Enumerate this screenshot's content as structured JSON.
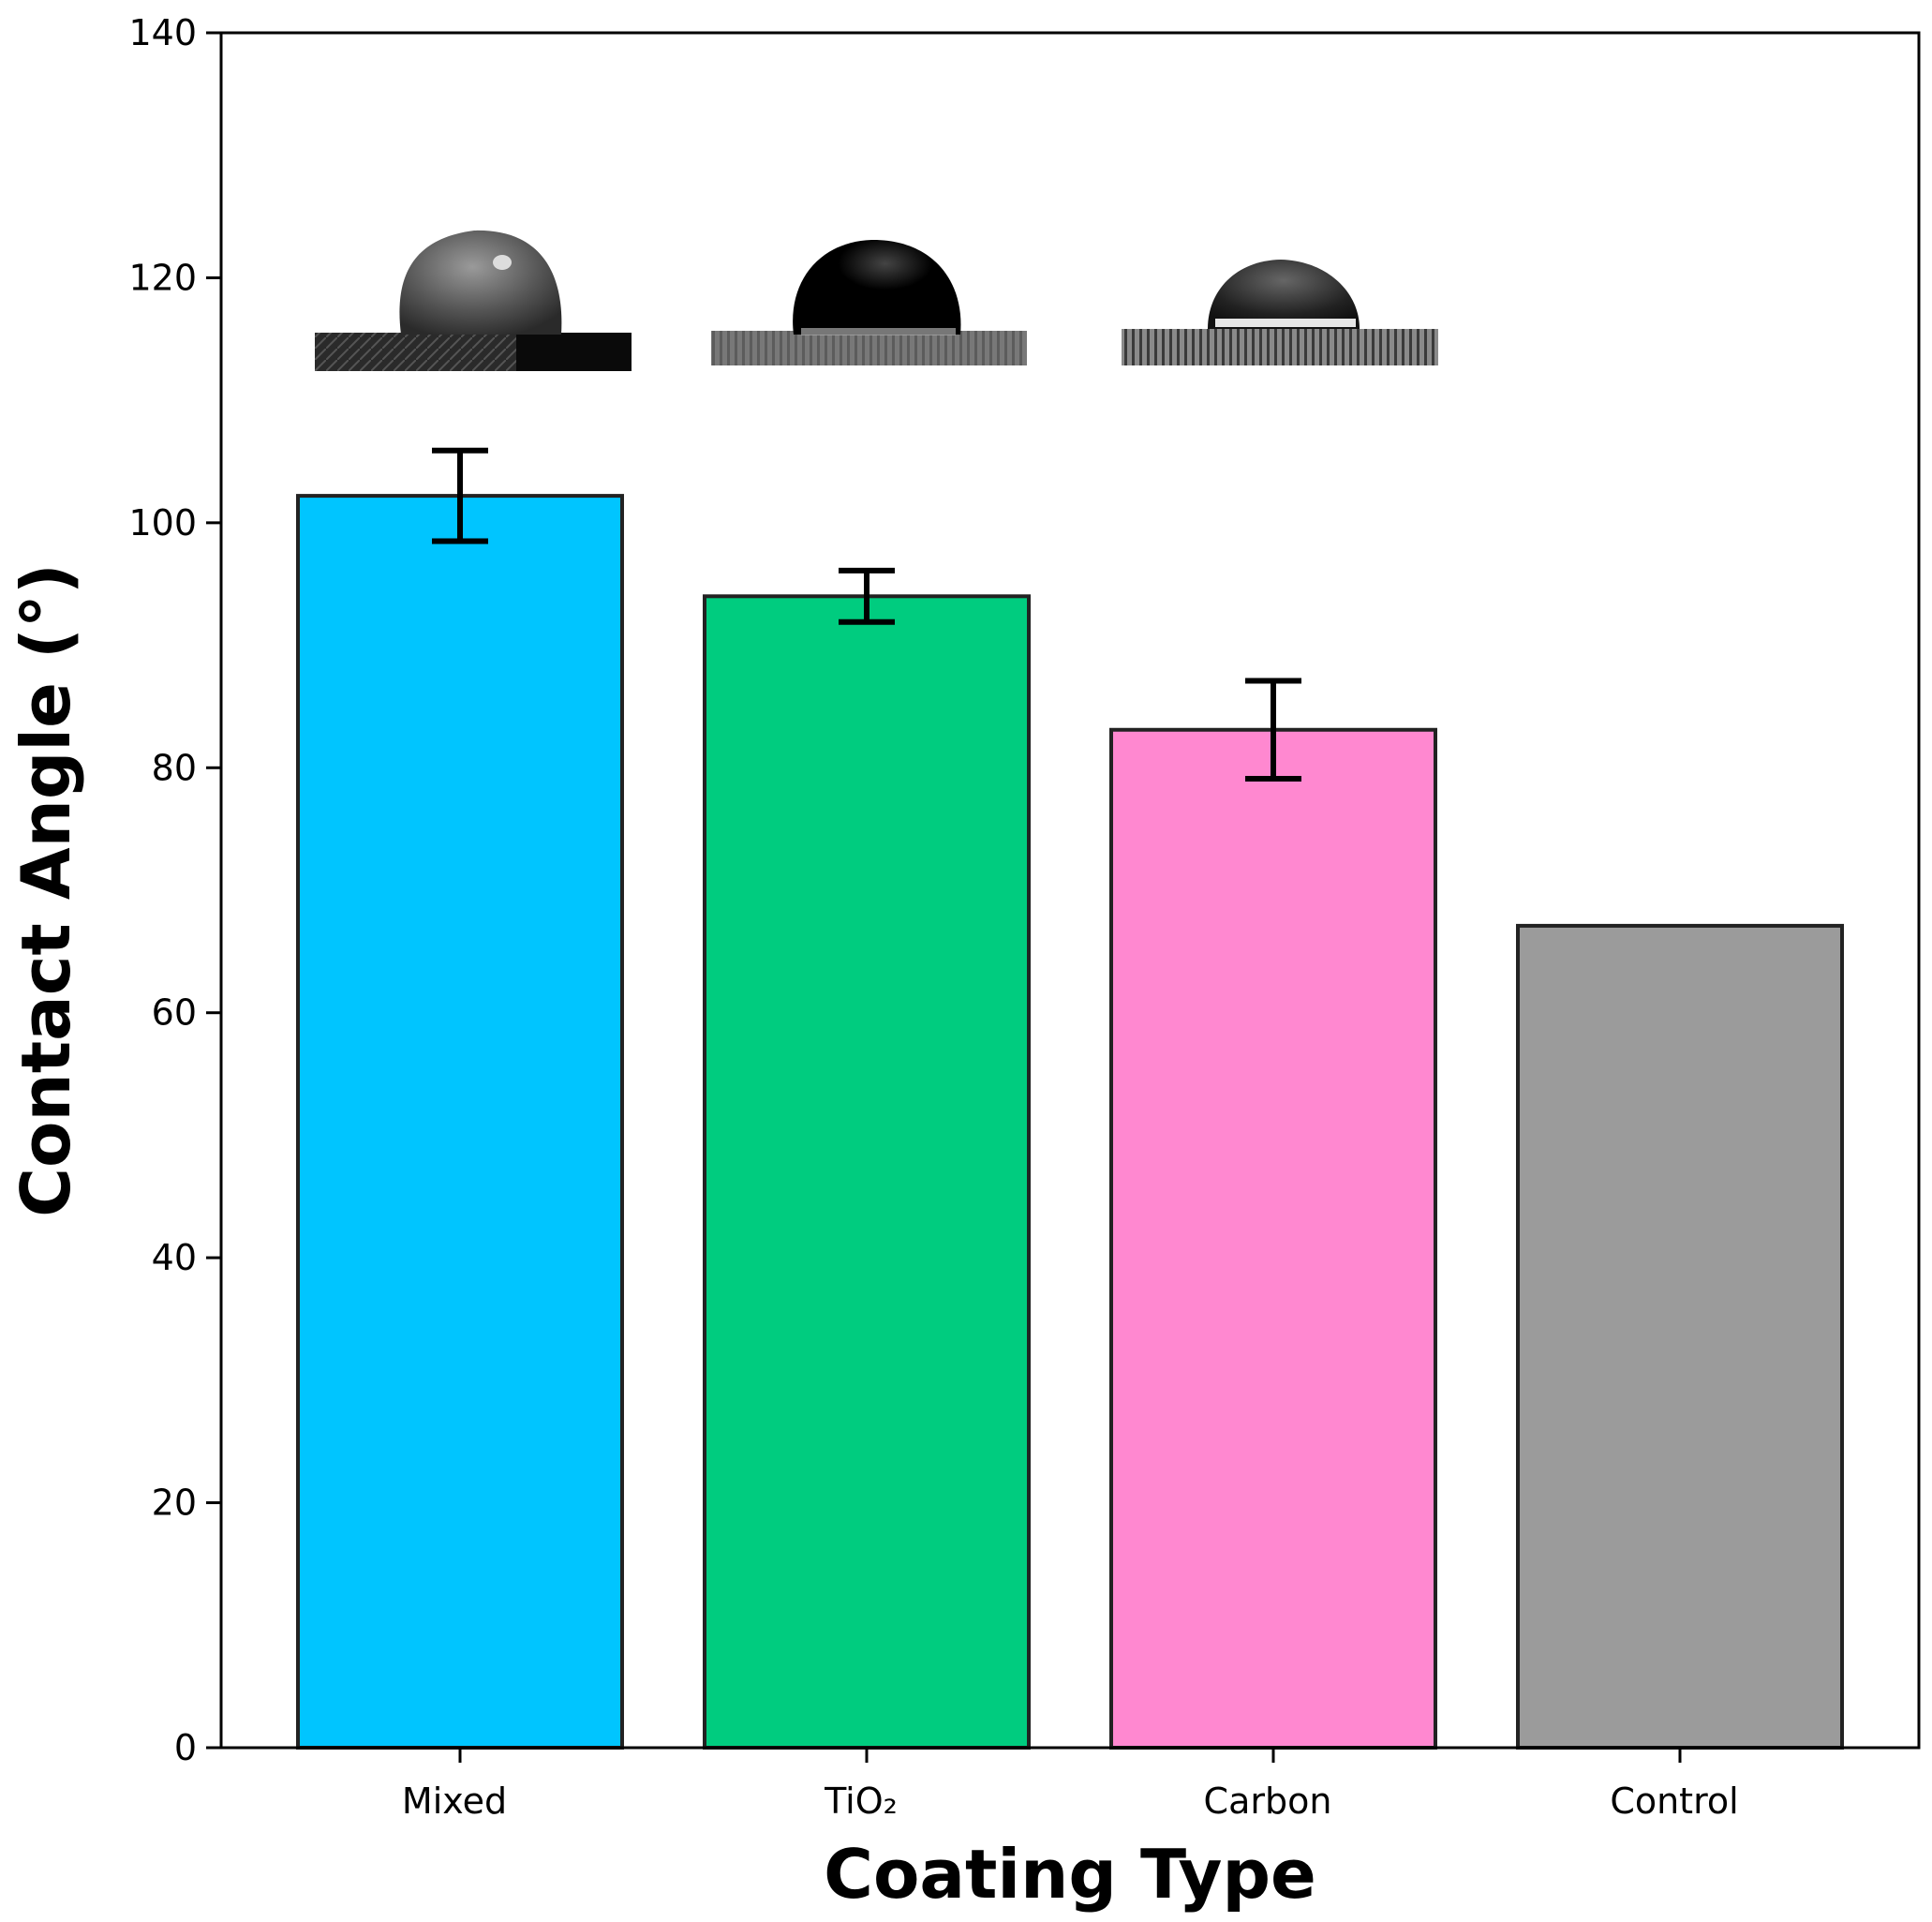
{
  "chart_data": {
    "type": "bar",
    "title": "",
    "xlabel": "Coating Type",
    "ylabel": "Contact Angle (°)",
    "ylim": [
      0,
      140
    ],
    "yticks": [
      0,
      20,
      40,
      60,
      80,
      100,
      120,
      140
    ],
    "categories": [
      "Mixed",
      "TiO₂",
      "Carbon",
      "Control"
    ],
    "values": [
      102.2,
      94.0,
      83.1,
      67.1
    ],
    "errors": [
      3.7,
      2.1,
      4.0,
      0
    ],
    "colors": [
      "#00c5ff",
      "#00cc7f",
      "#ff88d0",
      "#9b9b9b"
    ],
    "edge_color": "#222222",
    "grid": false,
    "insets": [
      {
        "category": "Mixed",
        "icon": "water-droplet-photo-icon",
        "style": "grey-drop"
      },
      {
        "category": "TiO₂",
        "icon": "water-droplet-photo-icon",
        "style": "black-drop"
      },
      {
        "category": "Carbon",
        "icon": "water-droplet-photo-icon",
        "style": "flat-drop"
      }
    ]
  }
}
